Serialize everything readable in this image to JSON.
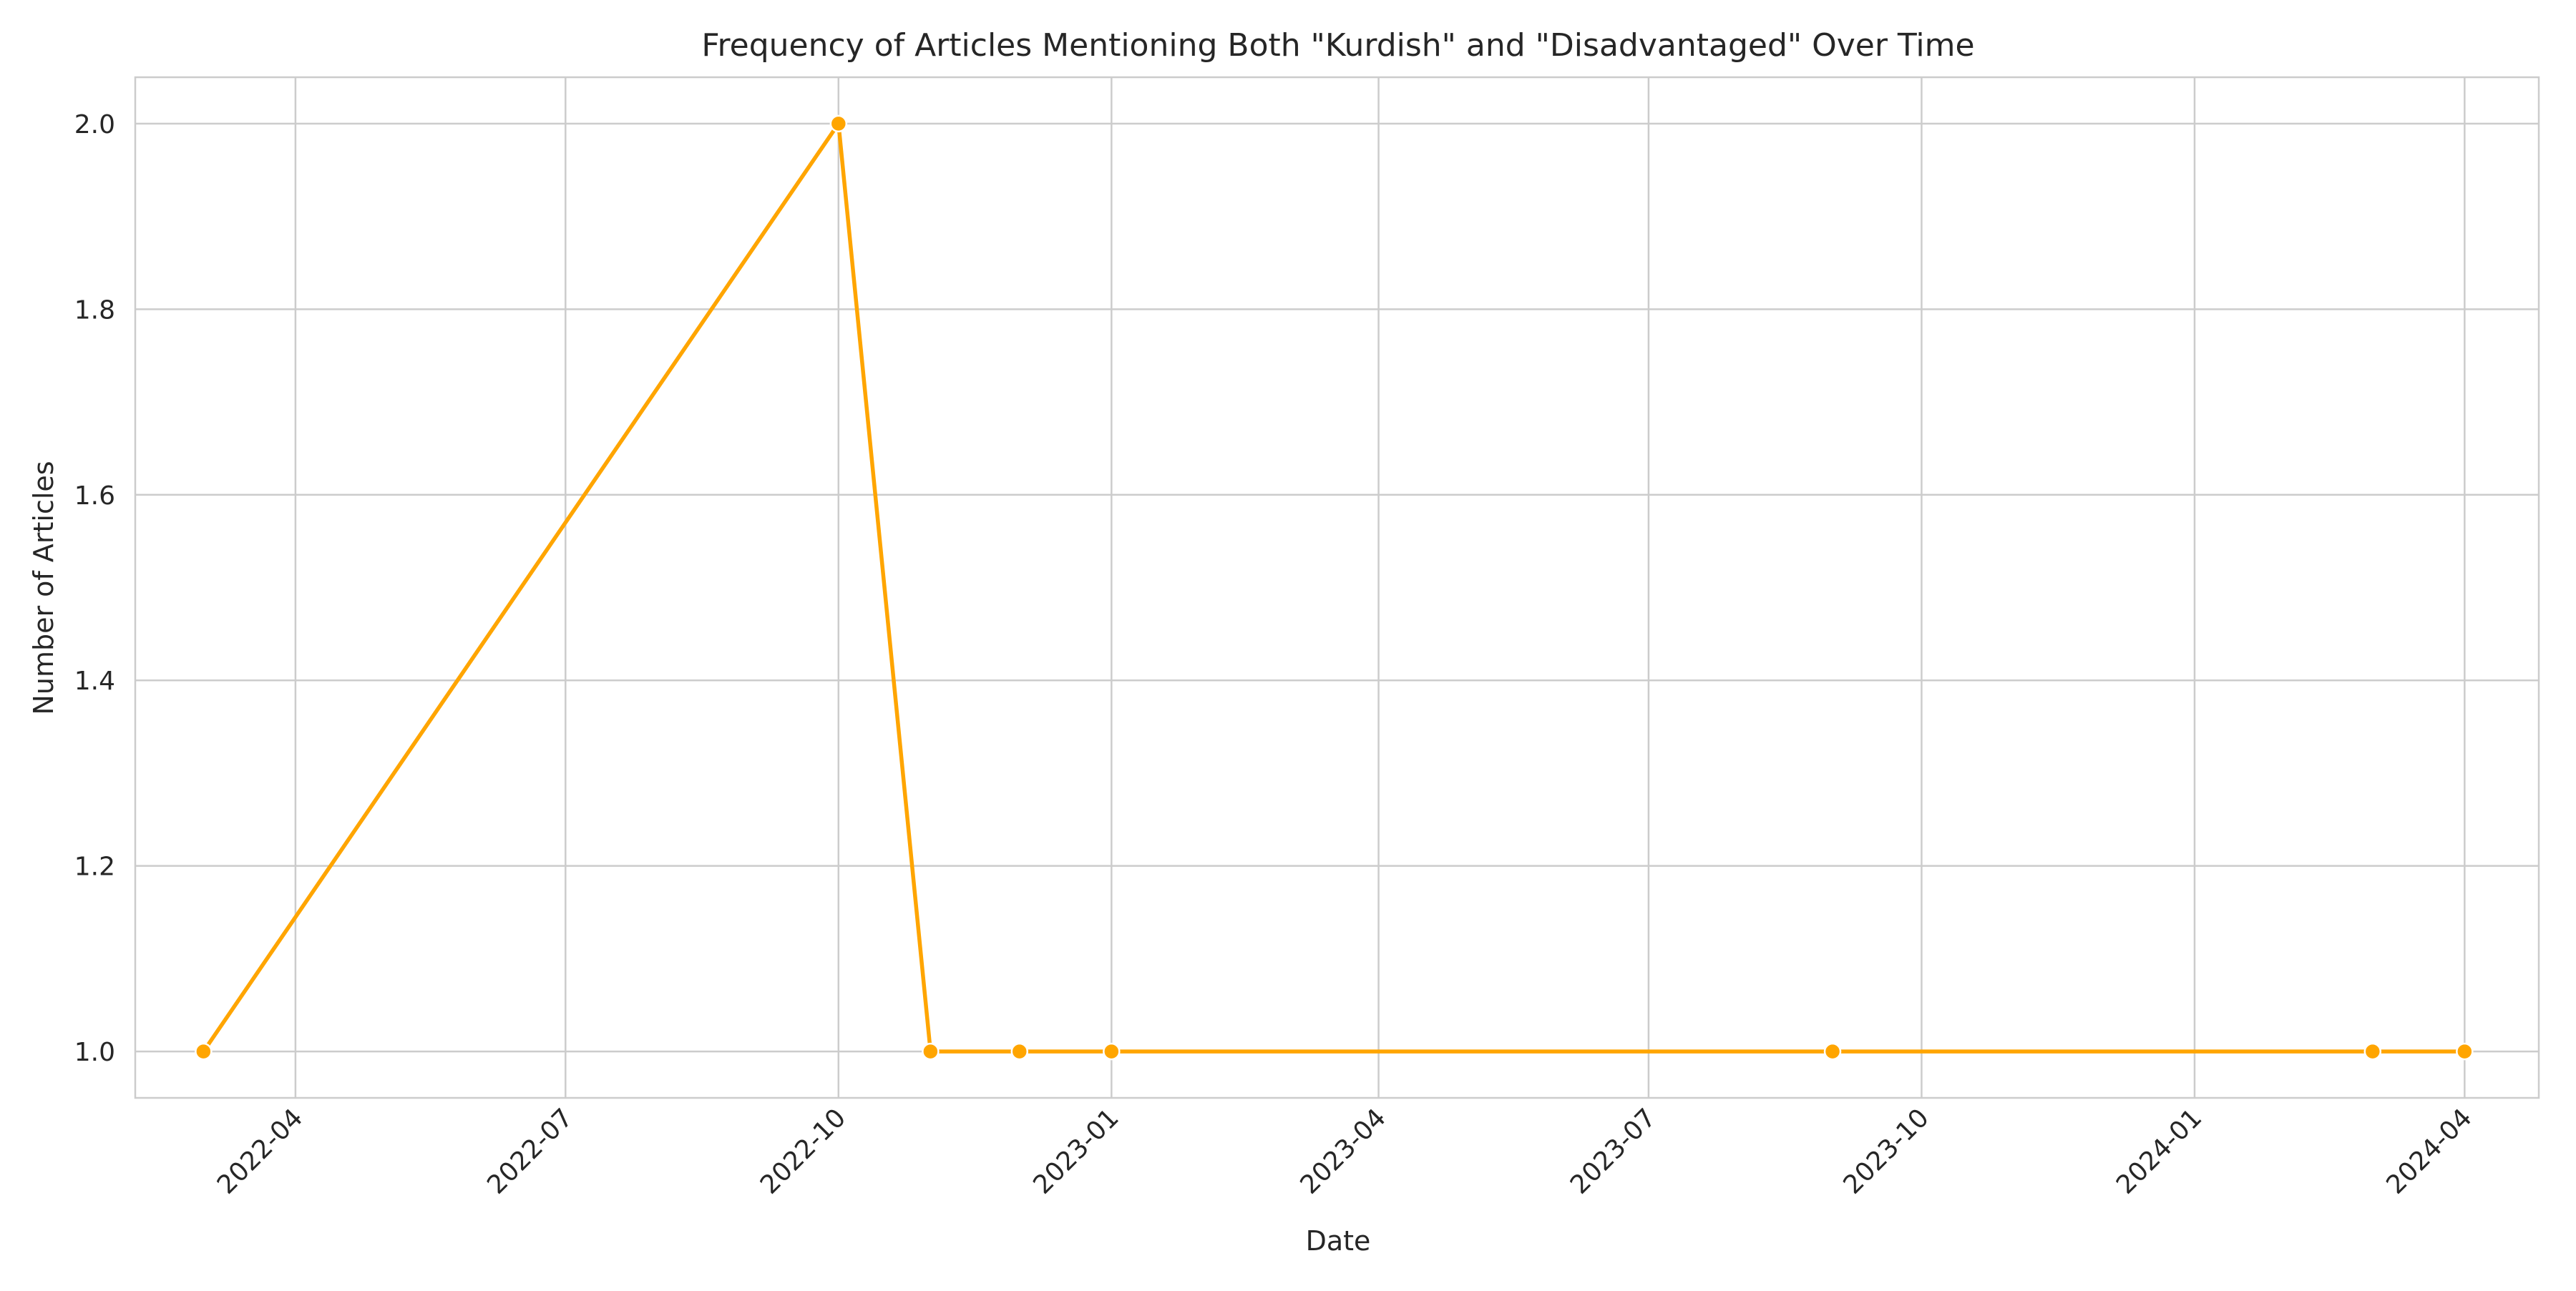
{
  "chart_data": {
    "type": "line",
    "title": "Frequency of Articles Mentioning Both \"Kurdish\" and \"Disadvantaged\" Over Time",
    "xlabel": "Date",
    "ylabel": "Number of Articles",
    "x_tick_labels": [
      "2022-04",
      "2022-07",
      "2022-10",
      "2023-01",
      "2023-04",
      "2023-07",
      "2023-10",
      "2024-01",
      "2024-04"
    ],
    "y_tick_labels": [
      "1.0",
      "1.2",
      "1.4",
      "1.6",
      "1.8",
      "2.0"
    ],
    "ylim": [
      0.95,
      2.05
    ],
    "xlim": [
      "2022-02-06",
      "2024-04-26"
    ],
    "grid": true,
    "legend": "none",
    "colors": {
      "line": "#ffa500",
      "grid": "#cccccc",
      "frame": "#cccccc"
    },
    "series": [
      {
        "points": [
          {
            "x": "2022-03-01",
            "y": 1
          },
          {
            "x": "2022-10-01",
            "y": 2
          },
          {
            "x": "2022-11-01",
            "y": 1
          },
          {
            "x": "2022-12-01",
            "y": 1
          },
          {
            "x": "2023-01-01",
            "y": 1
          },
          {
            "x": "2023-09-01",
            "y": 1
          },
          {
            "x": "2024-03-01",
            "y": 1
          },
          {
            "x": "2024-04-01",
            "y": 1
          }
        ]
      }
    ]
  }
}
